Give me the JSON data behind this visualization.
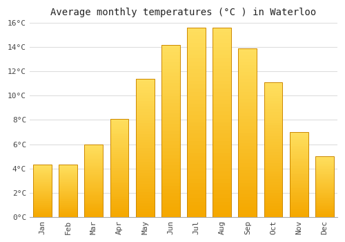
{
  "title": "Average monthly temperatures (°C ) in Waterloo",
  "months": [
    "Jan",
    "Feb",
    "Mar",
    "Apr",
    "May",
    "Jun",
    "Jul",
    "Aug",
    "Sep",
    "Oct",
    "Nov",
    "Dec"
  ],
  "temperatures": [
    4.3,
    4.3,
    6.0,
    8.1,
    11.4,
    14.2,
    15.6,
    15.6,
    13.9,
    11.1,
    7.0,
    5.0
  ],
  "bar_color_light": "#FFD966",
  "bar_color_dark": "#F5A800",
  "bar_edge_color": "#CC8800",
  "ylim": [
    0,
    16
  ],
  "yticks": [
    0,
    2,
    4,
    6,
    8,
    10,
    12,
    14,
    16
  ],
  "ytick_labels": [
    "0°C",
    "2°C",
    "4°C",
    "6°C",
    "8°C",
    "10°C",
    "12°C",
    "14°C",
    "16°C"
  ],
  "background_color": "#ffffff",
  "grid_color": "#dddddd",
  "title_fontsize": 10,
  "tick_fontsize": 8
}
